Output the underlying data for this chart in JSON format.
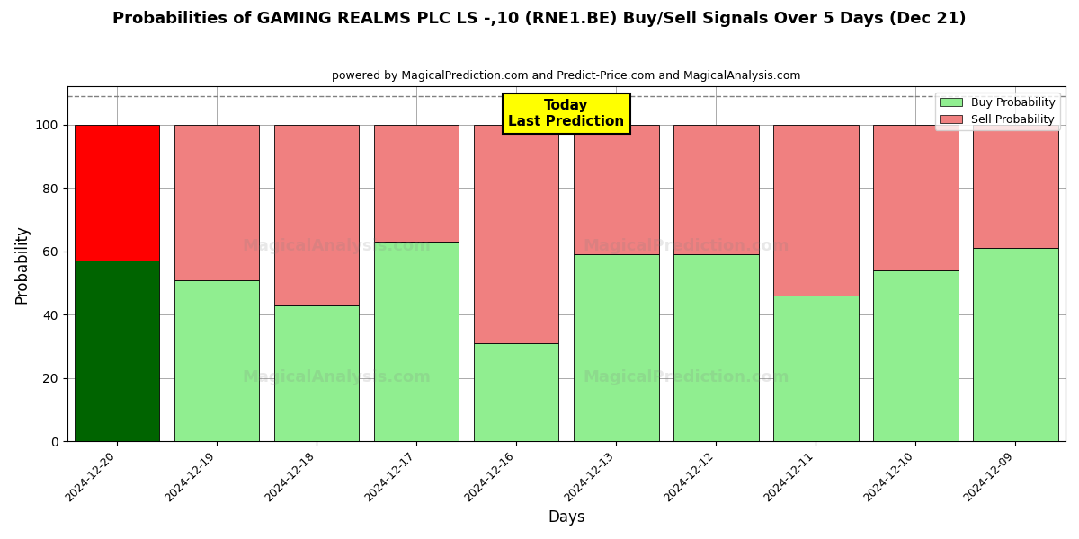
{
  "title": "Probabilities of GAMING REALMS PLC LS -,10 (RNE1.BE) Buy/Sell Signals Over 5 Days (Dec 21)",
  "subtitle": "powered by MagicalPrediction.com and Predict-Price.com and MagicalAnalysis.com",
  "xlabel": "Days",
  "ylabel": "Probability",
  "categories": [
    "2024-12-20",
    "2024-12-19",
    "2024-12-18",
    "2024-12-17",
    "2024-12-16",
    "2024-12-13",
    "2024-12-12",
    "2024-12-11",
    "2024-12-10",
    "2024-12-09"
  ],
  "buy_values": [
    57,
    51,
    43,
    63,
    31,
    59,
    59,
    46,
    54,
    61
  ],
  "sell_values": [
    43,
    49,
    57,
    37,
    69,
    41,
    41,
    54,
    46,
    39
  ],
  "buy_colors": [
    "#006400",
    "#90EE90",
    "#90EE90",
    "#90EE90",
    "#90EE90",
    "#90EE90",
    "#90EE90",
    "#90EE90",
    "#90EE90",
    "#90EE90"
  ],
  "sell_colors": [
    "#FF0000",
    "#F08080",
    "#F08080",
    "#F08080",
    "#F08080",
    "#F08080",
    "#F08080",
    "#F08080",
    "#F08080",
    "#F08080"
  ],
  "legend_buy_color": "#90EE90",
  "legend_sell_color": "#F08080",
  "today_label_bg": "#FFFF00",
  "today_label_text": "Today\nLast Prediction",
  "ylim": [
    0,
    112
  ],
  "yticks": [
    0,
    20,
    40,
    60,
    80,
    100
  ],
  "dashed_line_y": 109,
  "background_color": "#ffffff",
  "grid_color": "#aaaaaa",
  "bar_width": 0.85
}
